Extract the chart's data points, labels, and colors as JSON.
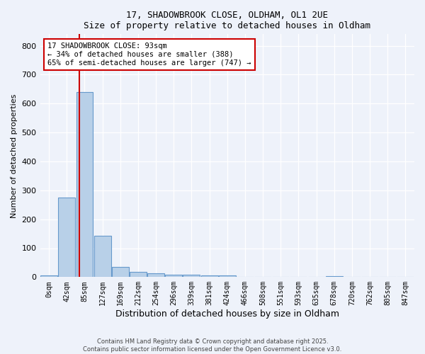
{
  "title_line1": "17, SHADOWBROOK CLOSE, OLDHAM, OL1 2UE",
  "title_line2": "Size of property relative to detached houses in Oldham",
  "xlabel": "Distribution of detached houses by size in Oldham",
  "ylabel": "Number of detached properties",
  "bar_labels": [
    "0sqm",
    "42sqm",
    "85sqm",
    "127sqm",
    "169sqm",
    "212sqm",
    "254sqm",
    "296sqm",
    "339sqm",
    "381sqm",
    "424sqm",
    "466sqm",
    "508sqm",
    "551sqm",
    "593sqm",
    "635sqm",
    "678sqm",
    "720sqm",
    "762sqm",
    "805sqm",
    "847sqm"
  ],
  "bar_values": [
    5,
    275,
    640,
    143,
    35,
    18,
    12,
    8,
    8,
    6,
    5,
    2,
    0,
    0,
    0,
    0,
    3,
    0,
    0,
    0,
    0
  ],
  "bar_color": "#b8d0e8",
  "bar_edge_color": "#6699cc",
  "annotation_text": "17 SHADOWBROOK CLOSE: 93sqm\n← 34% of detached houses are smaller (388)\n65% of semi-detached houses are larger (747) →",
  "annotation_box_color": "#ffffff",
  "annotation_box_edge": "#cc0000",
  "red_line_color": "#cc0000",
  "ylim": [
    0,
    840
  ],
  "yticks": [
    0,
    100,
    200,
    300,
    400,
    500,
    600,
    700,
    800
  ],
  "background_color": "#eef2fa",
  "grid_color": "#ffffff",
  "footer_line1": "Contains HM Land Registry data © Crown copyright and database right 2025.",
  "footer_line2": "Contains public sector information licensed under the Open Government Licence v3.0."
}
